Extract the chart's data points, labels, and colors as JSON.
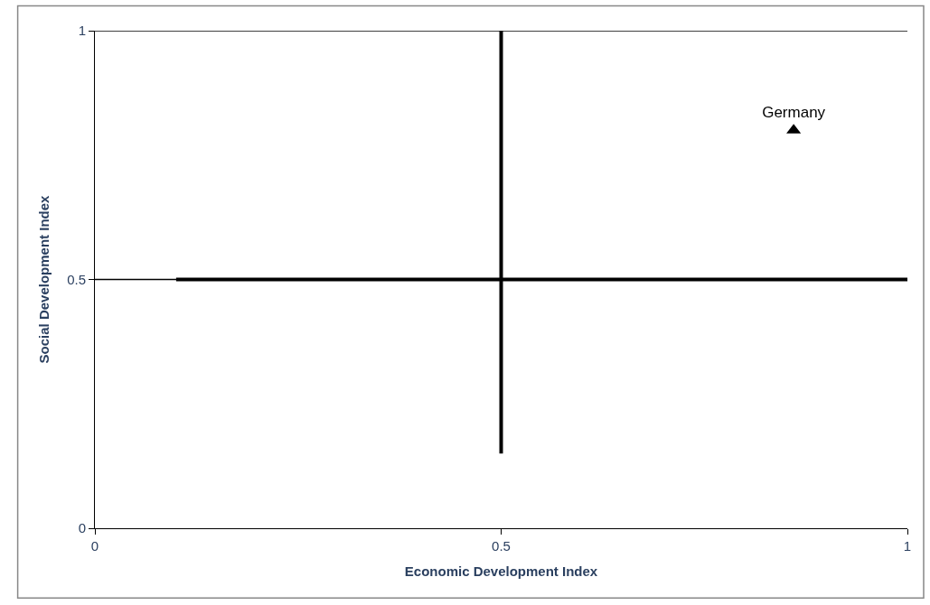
{
  "chart_data": {
    "type": "scatter",
    "xlabel": "Economic Development Index",
    "ylabel": "Social Development Index",
    "xlim": [
      0,
      1
    ],
    "xticks": [
      0,
      0.5,
      1
    ],
    "ylim": [
      0,
      1
    ],
    "yticks": [
      0,
      0.5,
      1
    ],
    "ref_lines": [
      {
        "axis": "y",
        "value": 0.5,
        "color": "#000000"
      },
      {
        "axis": "y",
        "value": 1,
        "color": "#000000"
      }
    ],
    "series": [
      {
        "type": "line",
        "color": "#000000",
        "x": [
          0.5,
          0.5
        ],
        "values": [
          0.15,
          1
        ],
        "marker": "none"
      },
      {
        "type": "line",
        "color": "#000000",
        "x": [
          0.1,
          1
        ],
        "values": [
          0.5,
          0.5
        ],
        "marker": "none"
      },
      {
        "name": "Germany",
        "color": "#000000",
        "x": [
          0.86
        ],
        "values": [
          0.8
        ],
        "marker": "triangle"
      }
    ]
  }
}
